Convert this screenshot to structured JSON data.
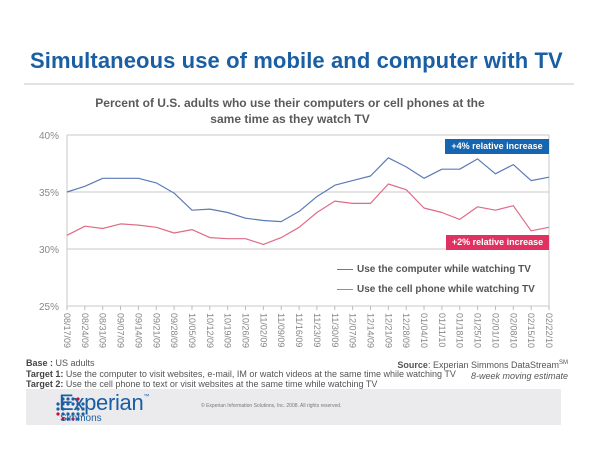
{
  "slide": {
    "title": "Simultaneous use of mobile and computer with TV"
  },
  "chart_data": {
    "type": "line",
    "title": "Percent of U.S. adults who use their computers or cell phones at the same time as they watch TV",
    "xlabel": "",
    "ylabel": "",
    "ylim": [
      0.25,
      0.4
    ],
    "y_ticks": [
      0.25,
      0.3,
      0.35,
      0.4
    ],
    "y_tick_labels": [
      "25%",
      "30%",
      "35%",
      "40%"
    ],
    "grid": true,
    "legend_position": "bottom-right (inside plot)",
    "x": [
      "08/17/09",
      "08/24/09",
      "08/31/09",
      "09/07/09",
      "09/14/09",
      "09/21/09",
      "09/28/09",
      "10/05/09",
      "10/12/09",
      "10/19/09",
      "10/26/09",
      "11/02/09",
      "11/09/09",
      "11/16/09",
      "11/23/09",
      "11/30/09",
      "12/07/09",
      "12/14/09",
      "12/21/09",
      "12/28/09",
      "01/04/10",
      "01/11/10",
      "01/18/10",
      "01/25/10",
      "02/01/10",
      "02/08/10",
      "02/15/10",
      "02/22/10"
    ],
    "series": [
      {
        "name": "Use the computer while watching TV",
        "color": "#5b7bb6",
        "values": [
          35.0,
          35.5,
          36.2,
          36.2,
          36.2,
          35.8,
          34.9,
          33.4,
          33.5,
          33.2,
          32.7,
          32.5,
          32.4,
          33.3,
          34.6,
          35.6,
          36.0,
          36.4,
          38.0,
          37.2,
          36.2,
          37.0,
          37.0,
          37.9,
          36.6,
          37.4,
          36.0,
          36.3
        ]
      },
      {
        "name": "Use the cell phone while watching TV",
        "color": "#e06b86",
        "values": [
          31.2,
          32.0,
          31.8,
          32.2,
          32.1,
          31.9,
          31.4,
          31.7,
          31.0,
          30.9,
          30.9,
          30.4,
          31.0,
          31.9,
          33.2,
          34.2,
          34.0,
          34.0,
          35.7,
          35.2,
          33.6,
          33.2,
          32.6,
          33.7,
          33.4,
          33.8,
          31.6,
          31.9
        ]
      }
    ],
    "annotations": [
      {
        "text": "+4% relative increase",
        "color": "#1565b0",
        "series": "Use the computer while watching TV"
      },
      {
        "text": "+2% relative increase",
        "color": "#e03261",
        "series": "Use the cell phone while watching TV"
      }
    ]
  },
  "notes": {
    "base_label": "Base :",
    "base_text": " US adults",
    "target1_label": "Target 1:",
    "target1_text": " Use the computer to visit websites, e-mail, IM or watch videos at the same time while watching TV",
    "target2_label": "Target 2:",
    "target2_text": " Use the cell phone to text or visit websites at the same time while watching TV",
    "source_label": "Source",
    "source_text": ":  Experian Simmons DataStream",
    "source_sup": "SM",
    "estimate": "8-week moving estimate"
  },
  "footer": {
    "brand": "Experian",
    "brand_tm": "™",
    "sub_brand": "Simmons",
    "copyright": "© Experian Information Solutions, Inc. 2008.  All rights reserved."
  }
}
